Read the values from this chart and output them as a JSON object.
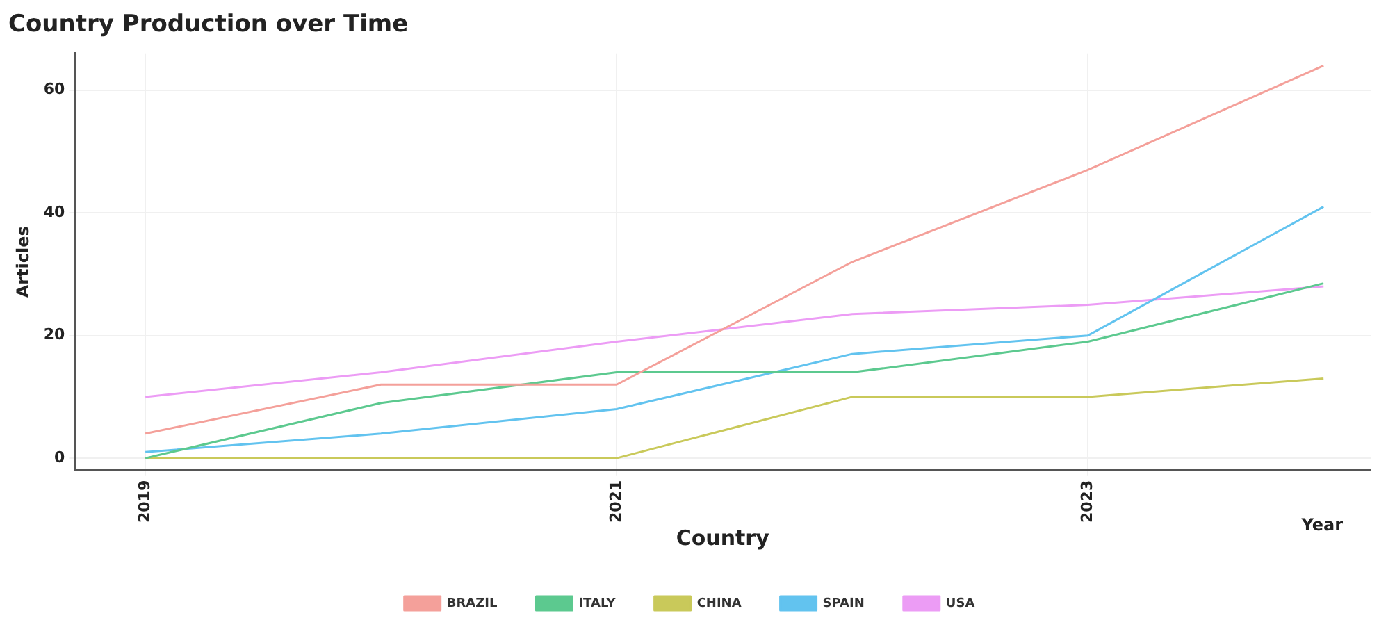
{
  "chart_data": {
    "type": "line",
    "title": "Country Production over Time",
    "xlabel": "Country",
    "ylabel": "Articles",
    "annotations": [
      "Year"
    ],
    "x": [
      2019,
      2020,
      2021,
      2022,
      2023,
      2024
    ],
    "series": [
      {
        "name": "BRAZIL",
        "color": "#f4a09a",
        "values": [
          4,
          12,
          12,
          32,
          47,
          64
        ]
      },
      {
        "name": "ITALY",
        "color": "#5cc98f",
        "values": [
          0,
          9,
          14,
          14,
          19,
          28.5
        ]
      },
      {
        "name": "CHINA",
        "color": "#c9c95a",
        "values": [
          0,
          0,
          0,
          10,
          10,
          13
        ]
      },
      {
        "name": "SPAIN",
        "color": "#62c3ef",
        "values": [
          1,
          4,
          8,
          17,
          20,
          41
        ]
      },
      {
        "name": "USA",
        "color": "#ec9cf5",
        "values": [
          10,
          14,
          19,
          23.5,
          25,
          28
        ]
      }
    ],
    "xlim": [
      2018.7,
      2024.2
    ],
    "xticks": [
      2019,
      2021,
      2023
    ],
    "ylim": [
      -2,
      66
    ],
    "yticks": [
      0,
      20,
      40,
      60
    ],
    "grid": true,
    "legend": "bottom",
    "marker": "none",
    "line_style": "solid"
  }
}
